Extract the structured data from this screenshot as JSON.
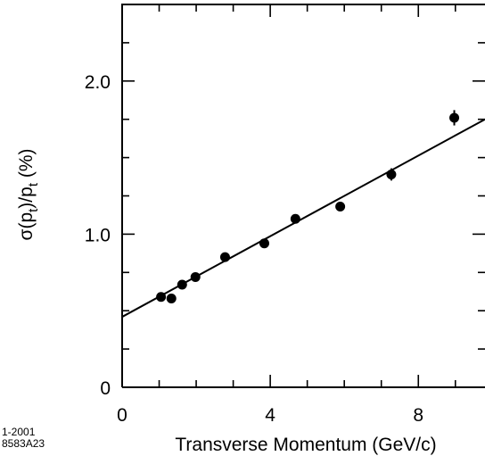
{
  "chart_data": {
    "type": "scatter",
    "xlabel": "Transverse Momentum  (GeV/c)",
    "ylabel_main": "σ(p",
    "ylabel_sub1": "t",
    "ylabel_mid": ")/p",
    "ylabel_sub2": "t",
    "ylabel_unit": "  (%)",
    "xlim": [
      0,
      9.8
    ],
    "ylim": [
      0,
      2.5
    ],
    "x_ticks": [
      {
        "value": 0,
        "label": "0"
      },
      {
        "value": 4,
        "label": "4"
      },
      {
        "value": 8,
        "label": "8"
      }
    ],
    "y_ticks": [
      {
        "value": 0,
        "label": "0"
      },
      {
        "value": 1.0,
        "label": "1.0"
      },
      {
        "value": 2.0,
        "label": "2.0"
      }
    ],
    "points": [
      {
        "x": 1.05,
        "y": 0.59
      },
      {
        "x": 1.33,
        "y": 0.58
      },
      {
        "x": 1.62,
        "y": 0.67
      },
      {
        "x": 1.98,
        "y": 0.72
      },
      {
        "x": 2.78,
        "y": 0.85
      },
      {
        "x": 3.84,
        "y": 0.94
      },
      {
        "x": 4.68,
        "y": 1.1
      },
      {
        "x": 5.89,
        "y": 1.18
      },
      {
        "x": 7.27,
        "y": 1.39,
        "err": 0.04
      },
      {
        "x": 8.97,
        "y": 1.76,
        "err": 0.05
      }
    ],
    "fit_line": {
      "x": [
        0,
        9.8
      ],
      "y": [
        0.46,
        1.75
      ]
    },
    "grid": false
  },
  "footer": {
    "code_line1": "1-2001",
    "code_line2": "8583A23"
  }
}
